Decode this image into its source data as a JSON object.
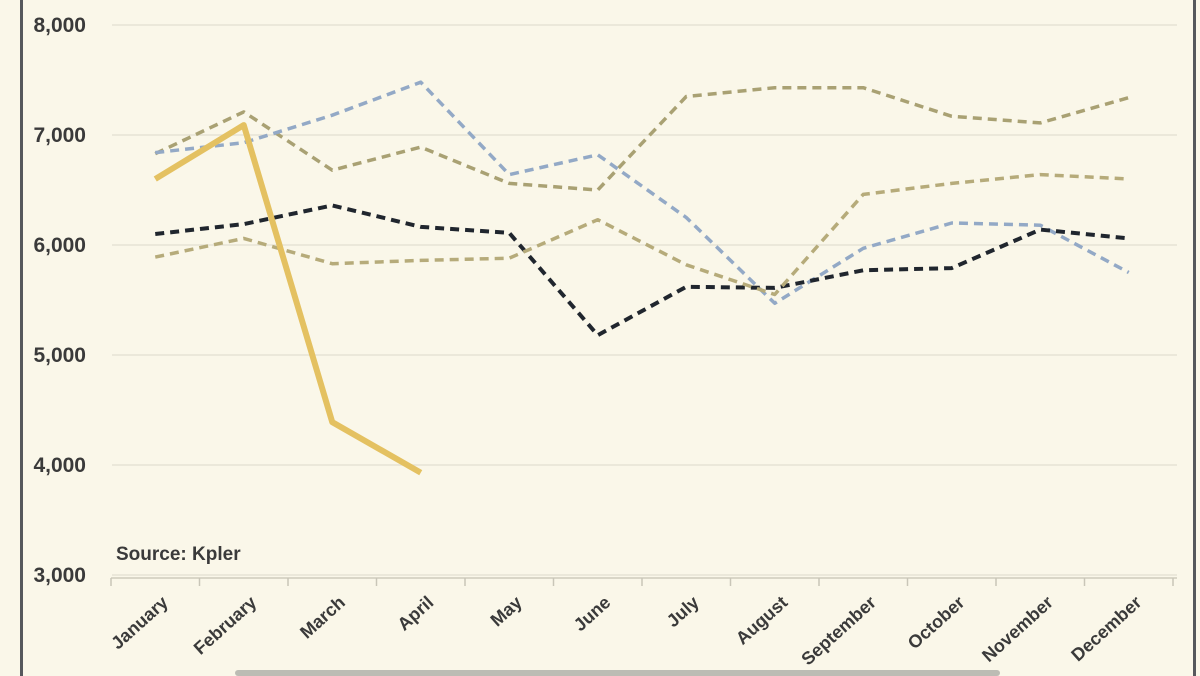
{
  "page": {
    "source_note": "Source: Kpler"
  },
  "colors": {
    "background": "#faf7e9",
    "frame_border": "#56585c",
    "gridline": "#e6e3d5",
    "axis_line": "#d9d6c7",
    "tick": "#c9c6b8",
    "label_text": "#3a3a3a",
    "bottom_bar": "#bcbcb4",
    "tan_dashed_upper": "#a9a173",
    "blue_dashed": "#93a9c6",
    "black_dashed": "#20262e",
    "tan_dashed_lower": "#b6ab7a",
    "gold_solid": "#e4c161"
  },
  "chart_data": {
    "type": "line",
    "title": "",
    "xlabel": "",
    "ylabel": "",
    "source": "Source: Kpler",
    "grid": true,
    "legend": "none",
    "categories": [
      "January",
      "February",
      "March",
      "April",
      "May",
      "June",
      "July",
      "August",
      "September",
      "October",
      "November",
      "December"
    ],
    "y_axis": {
      "min": 3000,
      "max": 8000,
      "tick_interval": 1000,
      "tick_values": [
        3000,
        4000,
        5000,
        6000,
        7000,
        8000
      ],
      "tick_labels": [
        "3,000",
        "4,000",
        "5,000",
        "6,000",
        "7,000",
        "8,000"
      ]
    },
    "series": [
      {
        "name": "tan-dashed-upper",
        "color": "#a9a173",
        "style": "dashed",
        "width": 3.5,
        "values": [
          6830,
          7210,
          6680,
          6890,
          6560,
          6500,
          7350,
          7430,
          7430,
          7170,
          7110,
          7340
        ]
      },
      {
        "name": "blue-dashed",
        "color": "#93a9c6",
        "style": "dashed",
        "width": 3.5,
        "values": [
          6840,
          6930,
          7180,
          7480,
          6640,
          6820,
          6250,
          5470,
          5970,
          6200,
          6180,
          5750
        ]
      },
      {
        "name": "black-dashed",
        "color": "#20262e",
        "style": "dashed",
        "width": 4,
        "values": [
          6100,
          6190,
          6360,
          6165,
          6110,
          5180,
          5620,
          5610,
          5770,
          5790,
          6140,
          6060
        ]
      },
      {
        "name": "tan-dashed-lower",
        "color": "#b6ab7a",
        "style": "dashed",
        "width": 3.5,
        "values": [
          5890,
          6060,
          5830,
          5860,
          5880,
          6230,
          5820,
          5550,
          6460,
          6560,
          6640,
          6600
        ]
      },
      {
        "name": "gold-solid",
        "color": "#e4c161",
        "style": "solid",
        "width": 6,
        "values": [
          6600,
          7090,
          4390,
          3930,
          null,
          null,
          null,
          null,
          null,
          null,
          null,
          null
        ]
      }
    ]
  }
}
